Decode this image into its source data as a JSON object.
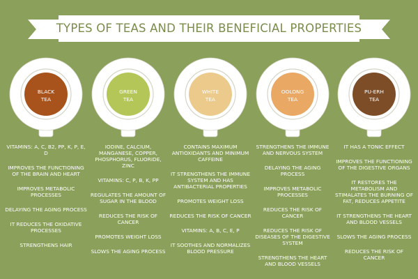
{
  "title": "TYPES OF TEAS AND THEIR BENEFICIAL PROPERTIES",
  "colors": {
    "background": "#8ba05a",
    "banner": "#ffffff",
    "banner_text": "#7a8c4a",
    "cup": "#ffffff"
  },
  "teas": [
    {
      "label": "BLACK\nTEA",
      "color": "#a7531b",
      "benefits": [
        "VITAMINS: A, C, B2, PP, K, P, E, D",
        "IMPROVES THE FUNCTIONING OF THE BRAIN AND HEART",
        "IMPROVES METABOLIC PROCESSES",
        "DELAYING THE AGING PROCESS",
        "IT REDUCES THE OXIDATIVE PROCESSES",
        "STRENGTHENS HAIR"
      ]
    },
    {
      "label": "GREEN\nTEA",
      "color": "#b5c659",
      "benefits": [
        "IODINE, CALCIUM, MANGANESE, COPPER, PHOSPHORUS, FLUORIDE, ZINC",
        "VITAMINS: C, P, B, K, PP",
        "REGULATES THE AMOUNT OF SUGAR IN THE BLOOD",
        "REDUCES THE RISK OF CANCER",
        "PROMOTES WEIGHT LOSS",
        "SLOWS THE AGING PROCESS"
      ]
    },
    {
      "label": "WHITE\nTEA",
      "color": "#ebca8b",
      "benefits": [
        "CONTAINS MAXIMUM ANTIOXIDANTS AND MINIMUM CAFFEINE",
        "IT STRENGTHENS THE IMMUNE SYSTEM AND HAS ANTIBACTERIAL PROPERTIES",
        "PROMOTES WEIGHT LOSS",
        "REDUCES THE RISK OF CANCER",
        "VITAMINS: A, B, C, E, P",
        "IT SOOTHES AND NORMALIZES BLOOD PRESSURE"
      ]
    },
    {
      "label": "OOLONG\nTEA",
      "color": "#eaa865",
      "benefits": [
        "STRENGTHENS THE IMMUNE AND NERVOUS SYSTEM",
        "DELAYING THE AGING PROCESS",
        "IMPROVES METABOLIC PROCESSES",
        "REDUCES THE RISK OF CANCER",
        "REDUCES THE RISK OF DISEASES OF THE DIGESTIVE SYSTEM",
        "STRENGTHENS THE HEART AND BLOOD VESSELS"
      ]
    },
    {
      "label": "PU-ERH\nTEA",
      "color": "#7c4d26",
      "benefits": [
        "IT HAS A TONIC EFFECT",
        "IMPROVES THE FUNCTIONING OF THE DIGESTIVE ORGANS",
        "IT RESTORES THE METABOLISM AND STIMALATES THE BURNING OF FAT, REDUCES APPETITE",
        "IT STRENGTHENS THE HEART AND BLOOD VESSELS",
        "SLOWS THE AGING PROCESS",
        "REDUCES THE RISK OF CANCER"
      ]
    }
  ]
}
